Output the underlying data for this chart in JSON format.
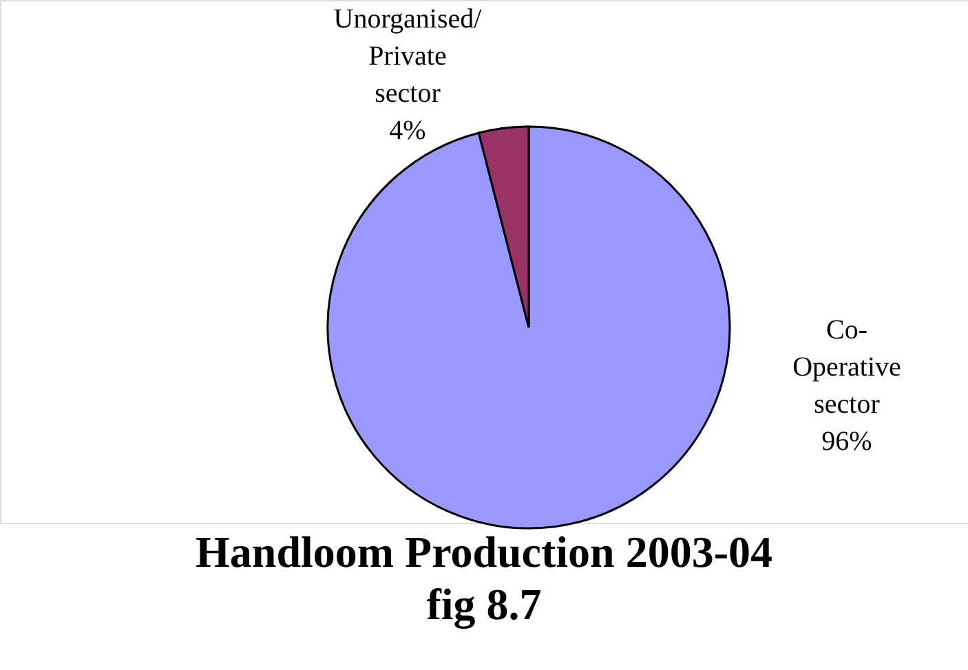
{
  "chart_data": {
    "type": "pie",
    "title": "Handloom Production 2003-04",
    "subtitle": "fig 8.7",
    "categories": [
      "Co-Operative sector",
      "Unorganised/ Private sector"
    ],
    "values": [
      96,
      4
    ],
    "colors": [
      "#9999ff",
      "#993366"
    ],
    "value_labels": [
      "96%",
      "4%"
    ]
  }
}
